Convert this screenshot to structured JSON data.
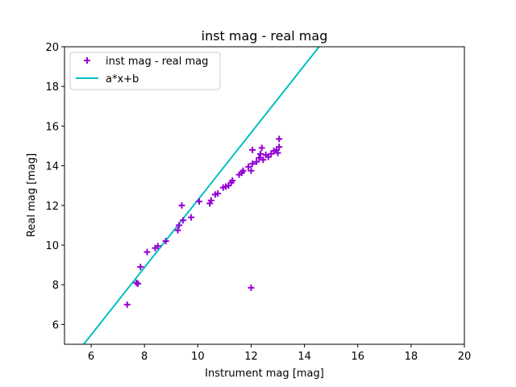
{
  "chart_data": {
    "type": "scatter",
    "title": "inst mag - real mag",
    "xlabel": "Instrument mag [mag]",
    "ylabel": "Real mag [mag]",
    "xlim": [
      5,
      20
    ],
    "ylim": [
      5,
      20
    ],
    "xticks": [
      6,
      8,
      10,
      12,
      14,
      16,
      18,
      20
    ],
    "yticks": [
      6,
      8,
      10,
      12,
      14,
      16,
      18,
      20
    ],
    "grid": false,
    "legend_position": "top-left",
    "series": [
      {
        "name": "inst mag - real mag",
        "kind": "scatter",
        "marker": "+",
        "color": "#9400d3",
        "points": [
          [
            7.35,
            7.0
          ],
          [
            7.7,
            8.1
          ],
          [
            7.75,
            8.05
          ],
          [
            7.85,
            8.9
          ],
          [
            8.1,
            9.65
          ],
          [
            8.4,
            9.85
          ],
          [
            8.5,
            9.95
          ],
          [
            8.8,
            10.2
          ],
          [
            9.25,
            10.75
          ],
          [
            9.3,
            11.0
          ],
          [
            9.4,
            12.0
          ],
          [
            9.45,
            11.25
          ],
          [
            9.75,
            11.4
          ],
          [
            10.05,
            12.2
          ],
          [
            10.45,
            12.1
          ],
          [
            10.5,
            12.25
          ],
          [
            10.65,
            12.55
          ],
          [
            10.75,
            12.6
          ],
          [
            10.95,
            12.9
          ],
          [
            11.05,
            12.95
          ],
          [
            11.15,
            13.0
          ],
          [
            11.25,
            13.15
          ],
          [
            11.3,
            13.25
          ],
          [
            11.55,
            13.55
          ],
          [
            11.65,
            13.65
          ],
          [
            11.7,
            13.75
          ],
          [
            11.9,
            13.95
          ],
          [
            12.0,
            13.75
          ],
          [
            12.05,
            14.1
          ],
          [
            12.05,
            14.8
          ],
          [
            12.2,
            14.2
          ],
          [
            12.3,
            14.4
          ],
          [
            12.35,
            14.6
          ],
          [
            12.4,
            14.9
          ],
          [
            12.45,
            14.3
          ],
          [
            12.55,
            14.55
          ],
          [
            12.65,
            14.45
          ],
          [
            12.75,
            14.6
          ],
          [
            12.85,
            14.75
          ],
          [
            12.95,
            14.8
          ],
          [
            13.0,
            14.65
          ],
          [
            13.05,
            14.95
          ],
          [
            13.05,
            15.35
          ],
          [
            12.0,
            7.85
          ]
        ]
      },
      {
        "name": "a*x+b",
        "kind": "line",
        "color": "#00bfbf",
        "x": [
          5.72,
          14.55
        ],
        "y": [
          5.0,
          20.0
        ]
      }
    ]
  }
}
